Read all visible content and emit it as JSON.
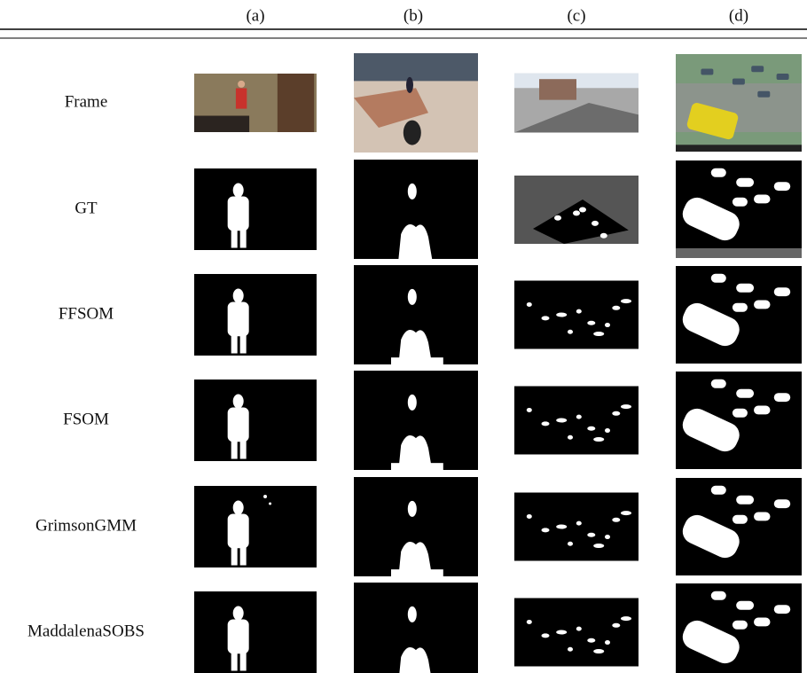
{
  "header": {
    "columns": [
      "(a)",
      "(b)",
      "(c)",
      "(d)"
    ]
  },
  "rows": [
    {
      "label": "Frame"
    },
    {
      "label": "GT"
    },
    {
      "label": "FFSOM"
    },
    {
      "label": "FSOM"
    },
    {
      "label": "GrimsonGMM"
    },
    {
      "label": "MaddalenaSOBS"
    }
  ]
}
